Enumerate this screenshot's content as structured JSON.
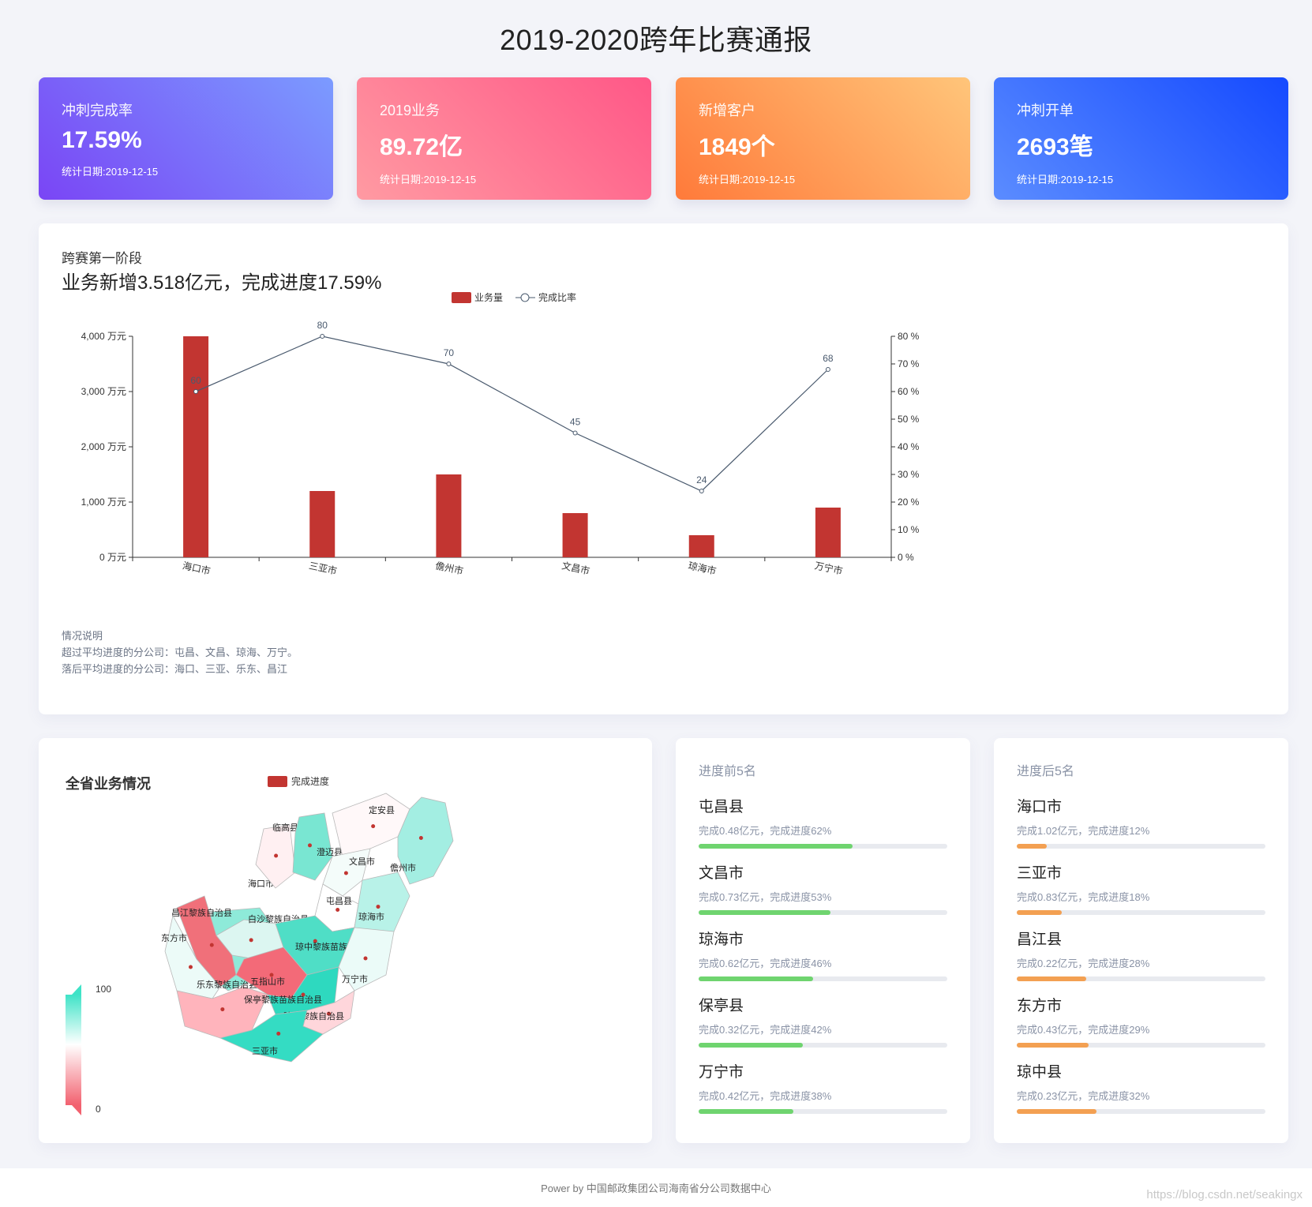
{
  "page_title": "2019-2020跨年比赛通报",
  "kpis": [
    {
      "label": "冲刺完成率",
      "value": "17.59%",
      "date": "统计日期:2019-12-15"
    },
    {
      "label": "2019业务",
      "value": "89.72亿",
      "date": "统计日期:2019-12-15"
    },
    {
      "label": "新增客户",
      "value": "1849个",
      "date": "统计日期:2019-12-15"
    },
    {
      "label": "冲刺开单",
      "value": "2693笔",
      "date": "统计日期:2019-12-15"
    }
  ],
  "main": {
    "subtitle": "跨赛第一阶段",
    "headline": "业务新增3.518亿元，完成进度17.59%",
    "notes": {
      "title": "情况说明",
      "line1": "超过平均进度的分公司：屯昌、文昌、琼海、万宁。",
      "line2": "落后平均进度的分公司：海口、三亚、乐东、昌江"
    }
  },
  "chart_data": {
    "type": "bar",
    "categories": [
      "海口市",
      "三亚市",
      "儋州市",
      "文昌市",
      "琼海市",
      "万宁市"
    ],
    "series": [
      {
        "name": "业务量",
        "type": "bar",
        "axis": "left",
        "values": [
          4000,
          1200,
          1500,
          800,
          400,
          900
        ],
        "color": "#c23531"
      },
      {
        "name": "完成比率",
        "type": "line",
        "axis": "right",
        "values": [
          60,
          80,
          70,
          45,
          24,
          68
        ],
        "color": "#4a5a6e"
      }
    ],
    "y_left": {
      "min": 0,
      "max": 4000,
      "ticks": [
        "0 万元",
        "1,000 万元",
        "2,000 万元",
        "3,000 万元",
        "4,000 万元"
      ]
    },
    "y_right": {
      "min": 0,
      "max": 80,
      "ticks": [
        "0 %",
        "10 %",
        "20 %",
        "30 %",
        "40 %",
        "50 %",
        "60 %",
        "70 %",
        "80 %"
      ]
    },
    "legend_position": "top-center"
  },
  "map": {
    "title": "全省业务情况",
    "legend_label": "完成进度",
    "visual_max": "100",
    "visual_min": "0",
    "regions": [
      "海口市",
      "临高县",
      "澄迈县",
      "定安县",
      "文昌市",
      "儋州市",
      "屯昌县",
      "昌江黎族自治县",
      "白沙黎族自治县",
      "琼海市",
      "东方市",
      "琼中黎族苗族自治县",
      "乐东黎族自治县",
      "五指山市",
      "万宁市",
      "保亭黎族苗族自治县",
      "陵水黎族自治县",
      "三亚市"
    ]
  },
  "rank_top": {
    "title": "进度前5名",
    "items": [
      {
        "name": "屯昌县",
        "desc": "完成0.48亿元，完成进度62%",
        "progress": 0.62
      },
      {
        "name": "文昌市",
        "desc": "完成0.73亿元，完成进度53%",
        "progress": 0.53
      },
      {
        "name": "琼海市",
        "desc": "完成0.62亿元，完成进度46%",
        "progress": 0.46
      },
      {
        "name": "保亭县",
        "desc": "完成0.32亿元，完成进度42%",
        "progress": 0.42
      },
      {
        "name": "万宁市",
        "desc": "完成0.42亿元，完成进度38%",
        "progress": 0.38
      }
    ]
  },
  "rank_bottom": {
    "title": "进度后5名",
    "items": [
      {
        "name": "海口市",
        "desc": "完成1.02亿元，完成进度12%",
        "progress": 0.12
      },
      {
        "name": "三亚市",
        "desc": "完成0.83亿元，完成进度18%",
        "progress": 0.18
      },
      {
        "name": "昌江县",
        "desc": "完成0.22亿元，完成进度28%",
        "progress": 0.28
      },
      {
        "name": "东方市",
        "desc": "完成0.43亿元，完成进度29%",
        "progress": 0.29
      },
      {
        "name": "琼中县",
        "desc": "完成0.23亿元，完成进度32%",
        "progress": 0.32
      }
    ]
  },
  "footer": "Power by 中国邮政集团公司海南省分公司数据中心",
  "watermark": "https://blog.csdn.net/seakingx"
}
